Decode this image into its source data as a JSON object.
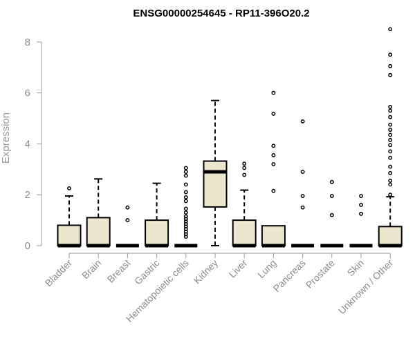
{
  "chart_data": {
    "type": "boxplot",
    "title": "ENSG00000254645 - RP11-396O20.2",
    "ylabel": "Expression",
    "xlabel": "",
    "ylim": [
      0,
      8.6
    ],
    "yticks": [
      0,
      2,
      4,
      6,
      8
    ],
    "grid": false,
    "legend": "none",
    "colors": {
      "box_fill": "#ede6cf",
      "box_stroke": "#000000",
      "median": "#000000",
      "axis": "#9a9a9a"
    },
    "categories": [
      "Bladder",
      "Brain",
      "Breast",
      "Gastric",
      "Hematopoietic cells",
      "Kidney",
      "Liver",
      "Lung",
      "Pancreas",
      "Prostate",
      "Skin",
      "Unknown / Other"
    ],
    "boxes": [
      {
        "category": "Bladder",
        "whisker_low": 0,
        "q1": 0,
        "median": 0,
        "q3": 0.8,
        "whisker_high": 1.95,
        "outliers": [
          2.25
        ]
      },
      {
        "category": "Brain",
        "whisker_low": 0,
        "q1": 0,
        "median": 0,
        "q3": 1.1,
        "whisker_high": 2.62,
        "outliers": []
      },
      {
        "category": "Breast",
        "whisker_low": 0,
        "q1": 0,
        "median": 0,
        "q3": 0,
        "whisker_high": 0,
        "outliers": [
          1.0,
          1.5
        ]
      },
      {
        "category": "Gastric",
        "whisker_low": 0,
        "q1": 0,
        "median": 0,
        "q3": 1.0,
        "whisker_high": 2.45,
        "outliers": []
      },
      {
        "category": "Hematopoietic cells",
        "whisker_low": 0,
        "q1": 0,
        "median": 0,
        "q3": 0,
        "whisker_high": 0,
        "outliers": [
          0.35,
          0.45,
          0.55,
          0.65,
          0.75,
          0.85,
          0.95,
          1.05,
          1.15,
          1.3,
          1.45,
          1.75,
          1.9,
          2.1,
          2.4,
          2.75,
          2.9,
          3.05
        ]
      },
      {
        "category": "Kidney",
        "whisker_low": 0,
        "q1": 1.52,
        "median": 2.9,
        "q3": 3.32,
        "whisker_high": 5.7,
        "outliers": []
      },
      {
        "category": "Liver",
        "whisker_low": 0,
        "q1": 0,
        "median": 0,
        "q3": 1.0,
        "whisker_high": 2.18,
        "outliers": [
          2.78,
          3.05,
          3.22
        ]
      },
      {
        "category": "Lung",
        "whisker_low": 0,
        "q1": 0,
        "median": 0,
        "q3": 0.78,
        "whisker_high": 0.78,
        "outliers": [
          2.15,
          3.2,
          3.55,
          3.92,
          5.18,
          6.0
        ]
      },
      {
        "category": "Pancreas",
        "whisker_low": 0,
        "q1": 0,
        "median": 0,
        "q3": 0,
        "whisker_high": 0,
        "outliers": [
          1.5,
          1.95,
          2.9,
          4.88
        ]
      },
      {
        "category": "Prostate",
        "whisker_low": 0,
        "q1": 0,
        "median": 0,
        "q3": 0,
        "whisker_high": 0,
        "outliers": [
          1.2,
          1.95,
          2.5
        ]
      },
      {
        "category": "Skin",
        "whisker_low": 0,
        "q1": 0,
        "median": 0,
        "q3": 0,
        "whisker_high": 0,
        "outliers": [
          1.25,
          1.6,
          1.95
        ]
      },
      {
        "category": "Unknown / Other",
        "whisker_low": 0,
        "q1": 0,
        "median": 0,
        "q3": 0.75,
        "whisker_high": 1.92,
        "outliers": [
          2.0,
          2.4,
          2.55,
          2.85,
          3.1,
          3.45,
          3.7,
          3.95,
          4.15,
          4.35,
          4.55,
          4.75,
          5.05,
          5.3,
          5.45,
          6.7,
          7.05,
          7.5,
          8.5
        ]
      }
    ]
  }
}
